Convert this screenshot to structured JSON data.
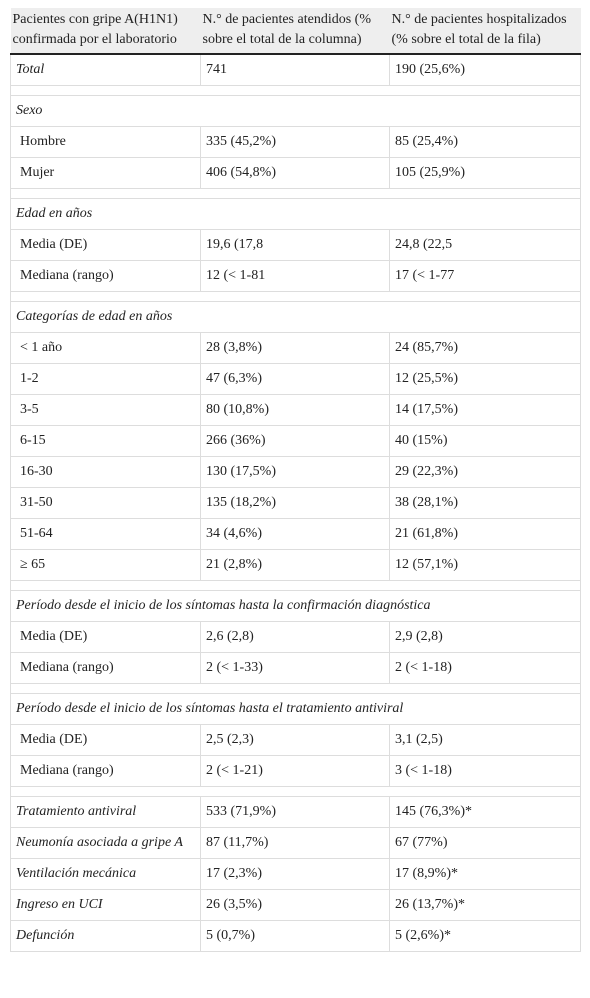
{
  "table": {
    "header": [
      "Pacientes con gripe A(H1N1) confirmada por el laboratorio",
      "N.° de pacientes atendidos (% sobre el total de la columna)",
      "N.° de pacientes hospitalizados (% sobre el total de la fila)"
    ],
    "groups": [
      {
        "rows": [
          [
            "Total",
            "741",
            "190 (25,6%)"
          ]
        ]
      },
      {
        "title": "Sexo",
        "rows": [
          [
            "Hombre",
            "335 (45,2%)",
            "85 (25,4%)"
          ],
          [
            "Mujer",
            "406 (54,8%)",
            "105 (25,9%)"
          ]
        ]
      },
      {
        "title": "Edad en años",
        "rows": [
          [
            "Media (DE)",
            "19,6 (17,8",
            "24,8 (22,5"
          ],
          [
            "Mediana (rango)",
            "12 (< 1-81",
            "17 (< 1-77"
          ]
        ]
      },
      {
        "title": "Categorías de edad en años",
        "rows": [
          [
            "< 1 año",
            "28 (3,8%)",
            "24 (85,7%)"
          ],
          [
            "1-2",
            "47 (6,3%)",
            "12 (25,5%)"
          ],
          [
            "3-5",
            "80 (10,8%)",
            "14 (17,5%)"
          ],
          [
            "6-15",
            "266 (36%)",
            "40 (15%)"
          ],
          [
            "16-30",
            "130 (17,5%)",
            "29 (22,3%)"
          ],
          [
            "31-50",
            "135 (18,2%)",
            "38 (28,1%)"
          ],
          [
            "51-64",
            "34 (4,6%)",
            "21 (61,8%)"
          ],
          [
            "≥ 65",
            "21 (2,8%)",
            "12 (57,1%)"
          ]
        ]
      },
      {
        "title": "Período desde el inicio de los síntomas hasta la confirmación diagnóstica",
        "rows": [
          [
            "Media (DE)",
            "2,6 (2,8)",
            "2,9 (2,8)"
          ],
          [
            "Mediana (rango)",
            "2 (< 1-33)",
            "2 (< 1-18)"
          ]
        ]
      },
      {
        "title": "Período desde el inicio de los síntomas hasta el tratamiento antiviral",
        "rows": [
          [
            "Media (DE)",
            "2,5 (2,3)",
            "3,1 (2,5)"
          ],
          [
            "Mediana (rango)",
            "2 (< 1-21)",
            "3 (< 1-18)"
          ]
        ]
      },
      {
        "rows": [
          [
            "Tratamiento antiviral",
            "533 (71,9%)",
            "145 (76,3%)*"
          ],
          [
            "Neumonía asociada a gripe A",
            "87 (11,7%)",
            "67 (77%)"
          ],
          [
            "Ventilación mecánica",
            "17 (2,3%)",
            "17 (8,9%)*"
          ],
          [
            "Ingreso en UCI",
            "26 (3,5%)",
            "26 (13,7%)*"
          ],
          [
            "Defunción",
            "5 (0,7%)",
            "5 (2,6%)*"
          ]
        ]
      }
    ]
  }
}
